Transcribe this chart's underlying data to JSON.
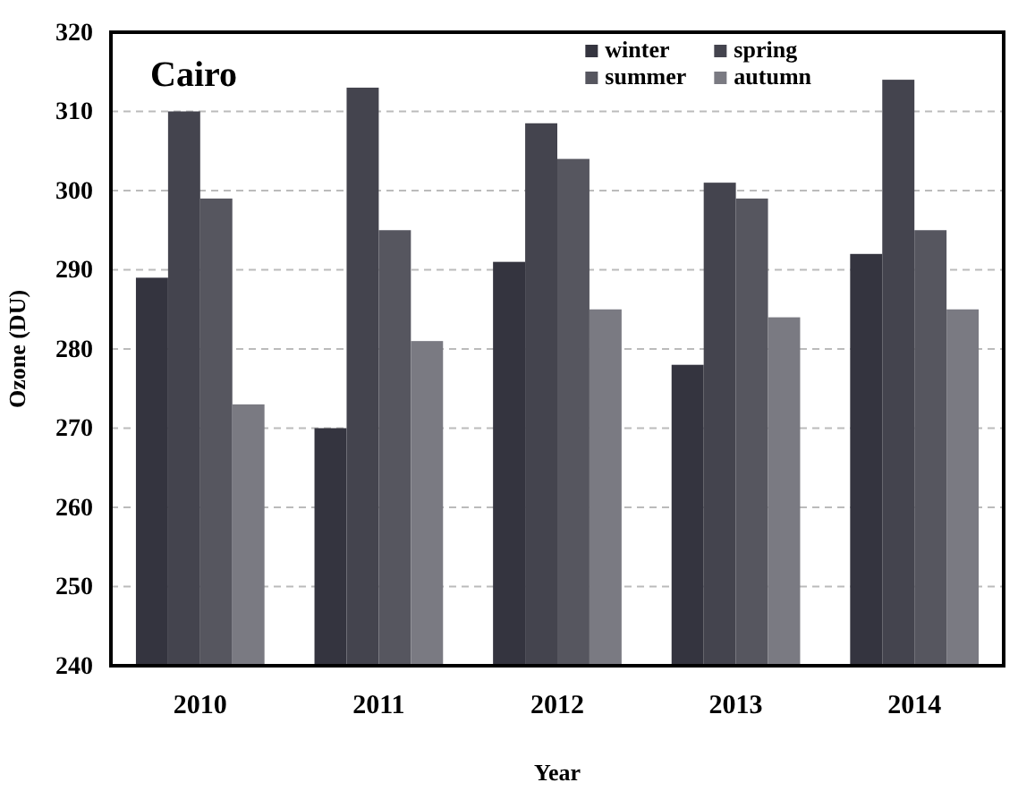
{
  "chart_data": {
    "type": "bar",
    "title": "Cairo",
    "xlabel": "Year",
    "ylabel": "Ozone (DU)",
    "categories": [
      "2010",
      "2011",
      "2012",
      "2013",
      "2014"
    ],
    "series": [
      {
        "name": "winter",
        "color": "#34343f",
        "values": [
          289,
          270,
          291,
          278,
          292
        ]
      },
      {
        "name": "spring",
        "color": "#44444e",
        "values": [
          310,
          313,
          308.5,
          301,
          314
        ]
      },
      {
        "name": "summer",
        "color": "#56565f",
        "values": [
          299,
          295,
          304,
          299,
          295
        ]
      },
      {
        "name": "autumn",
        "color": "#7a7a82",
        "values": [
          273,
          281,
          285,
          284,
          285
        ]
      }
    ],
    "ylim": [
      240,
      320
    ],
    "yticks": [
      240,
      250,
      260,
      270,
      280,
      290,
      300,
      310,
      320
    ],
    "grid": "y",
    "legend": "top right"
  }
}
